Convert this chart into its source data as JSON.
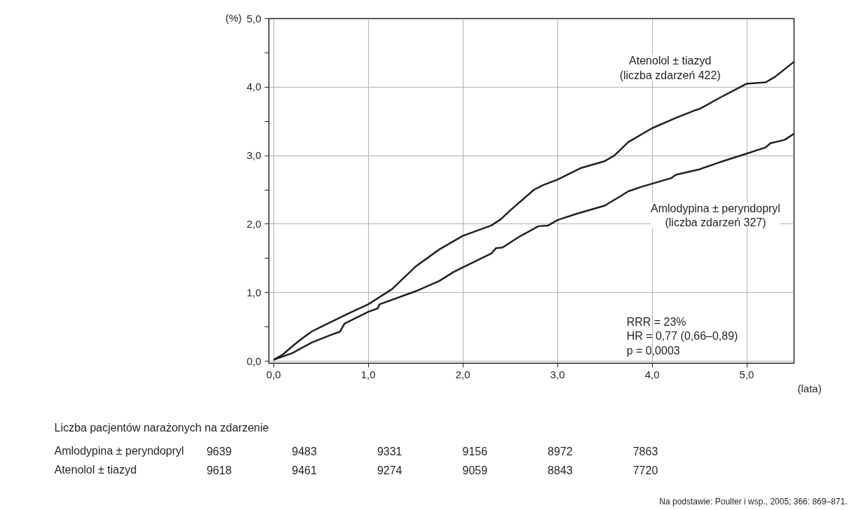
{
  "chart_data": {
    "type": "line",
    "xlabel": "(lata)",
    "ylabel": "(%)",
    "xlim": [
      -0.05,
      5.5
    ],
    "ylim": [
      -0.03,
      5.0
    ],
    "xticks": [
      {
        "value": 0,
        "label": "0,0"
      },
      {
        "value": 1,
        "label": "1,0"
      },
      {
        "value": 2,
        "label": "2,0"
      },
      {
        "value": 3,
        "label": "3,0"
      },
      {
        "value": 4,
        "label": "4,0"
      },
      {
        "value": 5,
        "label": "5,0"
      }
    ],
    "yticks": [
      {
        "value": 0,
        "label": "0,0"
      },
      {
        "value": 0.5,
        "label": null
      },
      {
        "value": 1,
        "label": "1,0"
      },
      {
        "value": 1.5,
        "label": null
      },
      {
        "value": 2,
        "label": "2,0"
      },
      {
        "value": 2.5,
        "label": null
      },
      {
        "value": 3,
        "label": "3,0"
      },
      {
        "value": 3.5,
        "label": null
      },
      {
        "value": 4,
        "label": "4,0"
      },
      {
        "value": 4.5,
        "label": null
      },
      {
        "value": 5,
        "label": "5,0"
      }
    ],
    "grid": true,
    "line_style": "solid",
    "marker": "none",
    "series": [
      {
        "name": "Atenolol ± tiazyd\n(liczba zdarzeń 422)",
        "color": "#231f20",
        "x": [
          0,
          0.1,
          0.2,
          0.3,
          0.4,
          0.5,
          0.75,
          1.0,
          1.25,
          1.5,
          1.75,
          2.0,
          2.3,
          2.4,
          2.5,
          2.75,
          2.85,
          3.0,
          3.25,
          3.5,
          3.6,
          3.75,
          4.0,
          4.25,
          4.45,
          4.5,
          4.75,
          5.0,
          5.2,
          5.3,
          5.5
        ],
        "values": [
          0.02,
          0.1,
          0.22,
          0.33,
          0.43,
          0.5,
          0.67,
          0.83,
          1.05,
          1.38,
          1.63,
          1.83,
          1.98,
          2.07,
          2.2,
          2.5,
          2.57,
          2.65,
          2.82,
          2.92,
          3.0,
          3.2,
          3.4,
          3.55,
          3.66,
          3.68,
          3.87,
          4.05,
          4.07,
          4.15,
          4.37
        ]
      },
      {
        "name": "Amlodypina ± peryndopryl\n(liczba zdarzeń 327)",
        "color": "#231f20",
        "x": [
          0,
          0.2,
          0.4,
          0.6,
          0.7,
          0.75,
          1.0,
          1.1,
          1.12,
          1.5,
          1.75,
          1.9,
          2.0,
          2.3,
          2.35,
          2.42,
          2.6,
          2.8,
          2.9,
          3.0,
          3.2,
          3.5,
          3.75,
          3.9,
          4.2,
          4.25,
          4.5,
          4.75,
          5.0,
          5.2,
          5.25,
          5.4,
          5.5
        ],
        "values": [
          0.02,
          0.12,
          0.27,
          0.38,
          0.43,
          0.55,
          0.72,
          0.77,
          0.83,
          1.02,
          1.17,
          1.3,
          1.37,
          1.57,
          1.65,
          1.66,
          1.82,
          1.97,
          1.98,
          2.06,
          2.15,
          2.27,
          2.48,
          2.55,
          2.67,
          2.72,
          2.8,
          2.92,
          3.03,
          3.12,
          3.18,
          3.23,
          3.32
        ]
      }
    ],
    "annotations": [
      "RRR = 23%\nHR = 0,77 (0,66–0,89)\np = 0,0003",
      "Liczba pacjentów narażonych na zdarzenie",
      "Amlodypina ± peryndopryl",
      "9639",
      "9483",
      "9331",
      "9156",
      "8972",
      "7863",
      "Atenolol ± tiazyd",
      "9618",
      "9461",
      "9274",
      "9059",
      "8843",
      "7720",
      "Na podstawie: Poulter i wsp., 2005; 366: 869–871."
    ]
  }
}
